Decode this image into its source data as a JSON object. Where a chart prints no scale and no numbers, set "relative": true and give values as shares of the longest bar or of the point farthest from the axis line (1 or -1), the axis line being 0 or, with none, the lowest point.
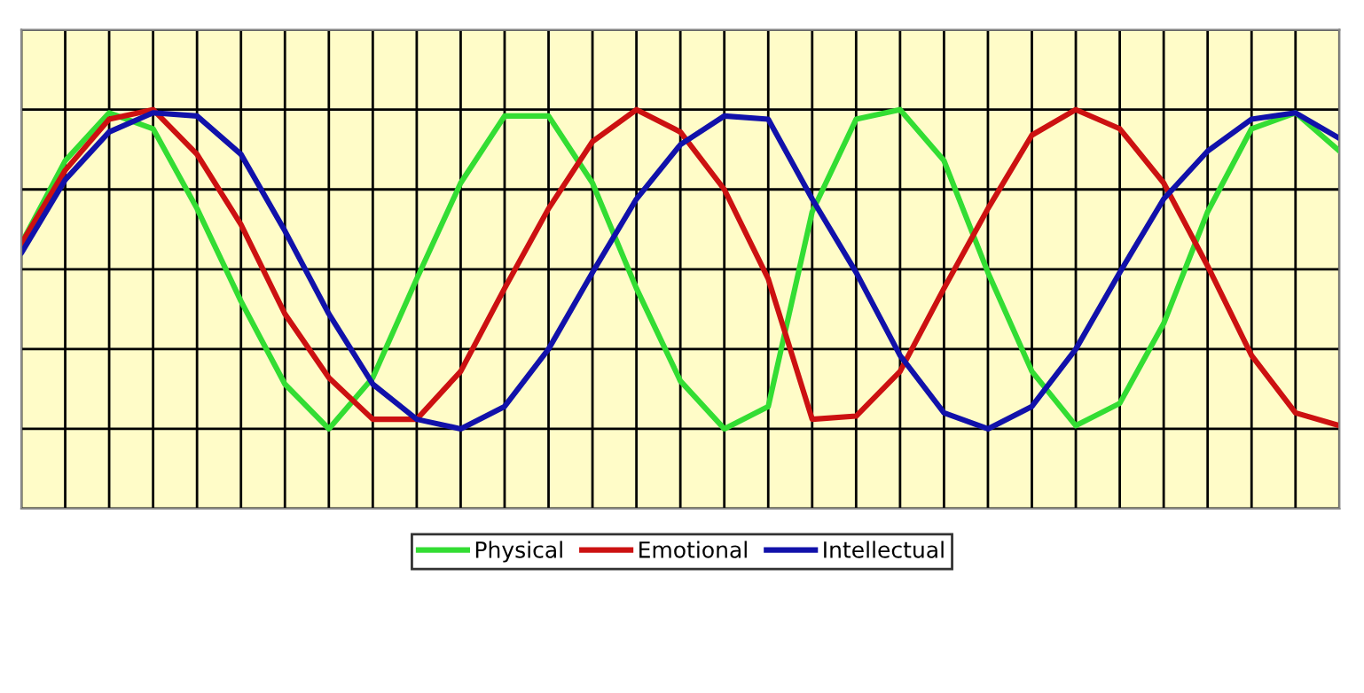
{
  "chart_data": {
    "type": "line",
    "relative": true,
    "grid": true,
    "legend": "bottom",
    "marker": "none",
    "line_style": "solid",
    "categories": [
      null,
      null,
      null,
      null,
      null,
      null,
      null,
      null,
      null,
      null,
      null,
      null,
      null,
      null,
      null,
      null,
      null,
      null,
      null,
      null,
      null,
      null,
      null,
      null,
      null,
      null,
      null,
      null,
      null,
      null,
      null
    ],
    "series": [
      {
        "name": "Physical",
        "color": "#33dd33",
        "values": [
          0.58,
          0.84,
          0.99,
          0.94,
          0.69,
          0.4,
          0.14,
          0,
          0.16,
          0.47,
          0.77,
          0.98,
          0.98,
          0.77,
          0.44,
          0.15,
          0,
          0.07,
          0.68,
          0.97,
          1,
          0.84,
          0.49,
          0.18,
          0.01,
          0.08,
          0.33,
          0.68,
          0.94,
          0.99,
          0.87
        ]
      },
      {
        "name": "Emotional",
        "color": "#cc1111",
        "values": [
          0.58,
          0.81,
          0.97,
          1,
          0.86,
          0.64,
          0.36,
          0.16,
          0.03,
          0.03,
          0.18,
          0.44,
          0.69,
          0.9,
          1,
          0.93,
          0.75,
          0.47,
          0.03,
          0.04,
          0.18,
          0.44,
          0.69,
          0.92,
          1,
          0.94,
          0.77,
          0.51,
          0.23,
          0.05,
          0.01
        ]
      },
      {
        "name": "Intellectual",
        "color": "#1111aa",
        "values": [
          0.55,
          0.78,
          0.93,
          0.99,
          0.98,
          0.86,
          0.62,
          0.36,
          0.14,
          0.03,
          0,
          0.07,
          0.25,
          0.49,
          0.72,
          0.89,
          0.98,
          0.97,
          0.72,
          0.49,
          0.23,
          0.05,
          0,
          0.07,
          0.25,
          0.49,
          0.72,
          0.87,
          0.97,
          0.99,
          0.91
        ]
      }
    ]
  }
}
